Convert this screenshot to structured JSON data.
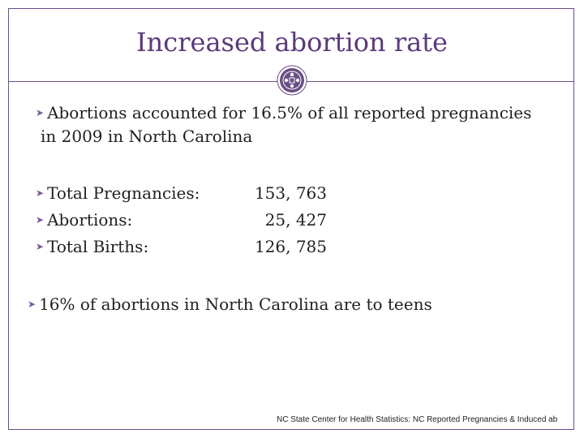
{
  "slide": {
    "title": "Increased abortion rate",
    "ornament_icon": "purple-circular-medallion-icon",
    "accent_color": "#6a4d86",
    "bullet_icon": "chevron-bullet-icon",
    "intro_line1": "Abortions accounted for 16.5% of all reported pregnancies",
    "intro_line2": "in 2009 in North Carolina",
    "stats": [
      {
        "label": "Total Pregnancies:",
        "value": "153, 763"
      },
      {
        "label": "Abortions:",
        "value": "25, 427"
      },
      {
        "label": "Total Births:",
        "value": "126, 785"
      }
    ],
    "teen_line": "16% of abortions in North Carolina are to teens",
    "source": "NC State Center for Health Statistics: NC Reported Pregnancies & Induced ab"
  }
}
